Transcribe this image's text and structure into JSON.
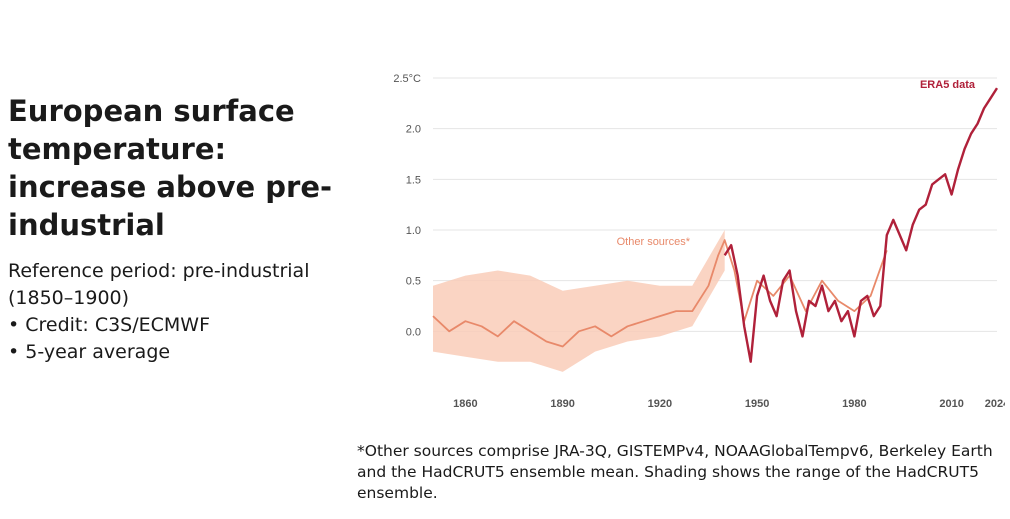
{
  "title": "European surface temperature: increase above pre-industrial",
  "subtitle": "Reference period: pre-industrial (1850–1900)",
  "bullets": [
    "• Credit: C3S/ECMWF",
    "• 5-year average"
  ],
  "footnote": "*Other sources comprise JRA-3Q, GISTEMPv4, NOAAGlobalTempv6, Berkeley Earth and the HadCRUT5 ensemble mean. Shading shows the range of the HadCRUT5 ensemble.",
  "colors": {
    "era5": "#b0213a",
    "others": "#e8896a",
    "shading": "#f9cdb9",
    "grid": "#e4e4e4",
    "tick": "#555555"
  },
  "chart_data": {
    "type": "line",
    "xlim": [
      1850,
      2024
    ],
    "ylim": [
      -0.5,
      2.5
    ],
    "y_ticks": [
      0.0,
      0.5,
      1.0,
      1.5,
      2.0,
      2.5
    ],
    "y_tick_labels": [
      "0.0",
      "0.5",
      "1.0",
      "1.5",
      "2.0",
      "2.5°C"
    ],
    "x_ticks": [
      1860,
      1890,
      1920,
      1950,
      1980,
      2010,
      2024
    ],
    "x_tick_labels": [
      "1860",
      "1890",
      "1920",
      "1950",
      "1980",
      "2010",
      "2024"
    ],
    "grid": "horizontal",
    "series": [
      {
        "name": "ERA5 data",
        "x": [
          1940,
          1942,
          1944,
          1946,
          1948,
          1950,
          1952,
          1954,
          1956,
          1958,
          1960,
          1962,
          1964,
          1966,
          1968,
          1970,
          1972,
          1974,
          1976,
          1978,
          1980,
          1982,
          1984,
          1986,
          1988,
          1990,
          1992,
          1994,
          1996,
          1998,
          2000,
          2002,
          2004,
          2006,
          2008,
          2010,
          2012,
          2014,
          2016,
          2018,
          2020,
          2022,
          2024
        ],
        "y": [
          0.75,
          0.85,
          0.55,
          0.05,
          -0.3,
          0.35,
          0.55,
          0.3,
          0.15,
          0.5,
          0.6,
          0.2,
          -0.05,
          0.3,
          0.25,
          0.45,
          0.2,
          0.3,
          0.1,
          0.2,
          -0.05,
          0.3,
          0.35,
          0.15,
          0.25,
          0.95,
          1.1,
          0.95,
          0.8,
          1.05,
          1.2,
          1.25,
          1.45,
          1.5,
          1.55,
          1.35,
          1.6,
          1.8,
          1.95,
          2.05,
          2.2,
          2.3,
          2.4
        ]
      },
      {
        "name": "Other sources*",
        "x": [
          1850,
          1855,
          1860,
          1865,
          1870,
          1875,
          1880,
          1885,
          1890,
          1895,
          1900,
          1905,
          1910,
          1915,
          1920,
          1925,
          1930,
          1935,
          1938,
          1940,
          1943,
          1946,
          1950,
          1955,
          1960,
          1965,
          1970,
          1975,
          1980,
          1985,
          1990
        ],
        "y": [
          0.15,
          0.0,
          0.1,
          0.05,
          -0.05,
          0.1,
          0.0,
          -0.1,
          -0.15,
          0.0,
          0.05,
          -0.05,
          0.05,
          0.1,
          0.15,
          0.2,
          0.2,
          0.45,
          0.75,
          0.9,
          0.6,
          0.1,
          0.5,
          0.35,
          0.55,
          0.2,
          0.5,
          0.3,
          0.2,
          0.35,
          0.8
        ]
      }
    ],
    "shading": {
      "x": [
        1850,
        1860,
        1870,
        1880,
        1890,
        1900,
        1910,
        1920,
        1930,
        1940
      ],
      "y_low": [
        -0.2,
        -0.25,
        -0.3,
        -0.3,
        -0.4,
        -0.2,
        -0.1,
        -0.05,
        0.05,
        0.6
      ],
      "y_high": [
        0.45,
        0.55,
        0.6,
        0.55,
        0.4,
        0.45,
        0.5,
        0.45,
        0.45,
        1.0
      ]
    },
    "annotations": [
      "ERA5 data",
      "Other sources*"
    ]
  }
}
